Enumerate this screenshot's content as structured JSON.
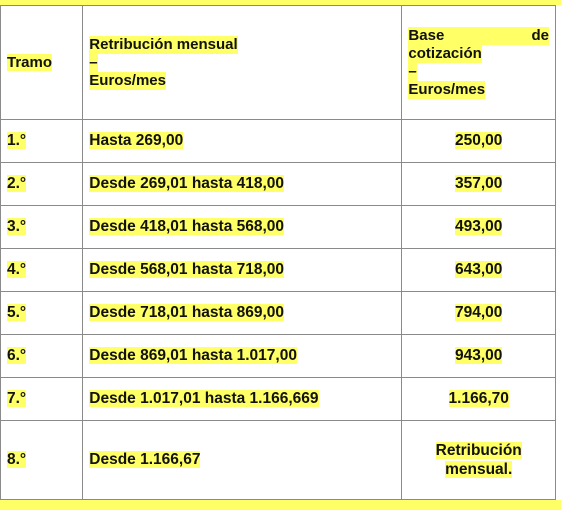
{
  "table": {
    "header": [
      "Tramo",
      [
        "Retribución mensual",
        "–",
        "Euros/mes"
      ],
      [
        "Base de",
        "cotización",
        "–",
        "Euros/mes"
      ]
    ],
    "rows": [
      [
        "1.°",
        "Hasta 269,00",
        "250,00"
      ],
      [
        "2.°",
        "Desde 269,01 hasta 418,00",
        "357,00"
      ],
      [
        "3.°",
        "Desde 418,01 hasta 568,00",
        "493,00"
      ],
      [
        "4.°",
        "Desde 568,01 hasta 718,00",
        "643,00"
      ],
      [
        "5.°",
        "Desde 718,01 hasta 869,00",
        "794,00"
      ],
      [
        "6.°",
        "Desde 869,01 hasta 1.017,00",
        "943,00"
      ],
      [
        "7.°",
        "Desde 1.017,01 hasta 1.166,669",
        "1.166,70"
      ],
      [
        "8.°",
        "Desde 1.166,67",
        [
          "Retribución",
          "mensual."
        ]
      ]
    ]
  }
}
